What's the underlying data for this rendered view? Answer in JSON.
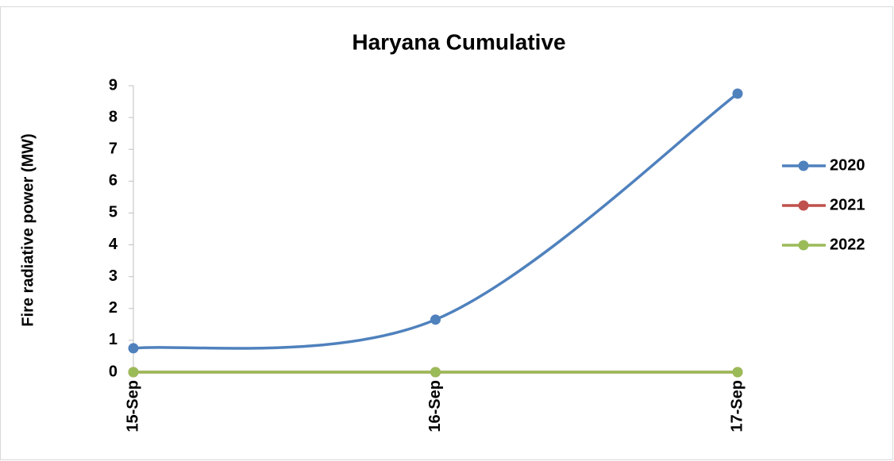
{
  "chart_data": {
    "type": "line",
    "title": "Haryana Cumulative",
    "y_label": "Fire radiative power (MW)",
    "categories": [
      "15-Sep",
      "16-Sep",
      "17-Sep"
    ],
    "series": [
      {
        "name": "2020",
        "color": "#4f81bd",
        "values": [
          0.75,
          1.65,
          8.75
        ]
      },
      {
        "name": "2021",
        "color": "#c0504d",
        "values": [
          0,
          0,
          0
        ]
      },
      {
        "name": "2022",
        "color": "#9bbb59",
        "values": [
          0,
          0,
          0
        ]
      }
    ],
    "ylim": [
      0,
      9
    ],
    "yticks": [
      0,
      1,
      2,
      3,
      4,
      5,
      6,
      7,
      8,
      9
    ],
    "grid": false,
    "smooth": true,
    "legend": "right"
  }
}
